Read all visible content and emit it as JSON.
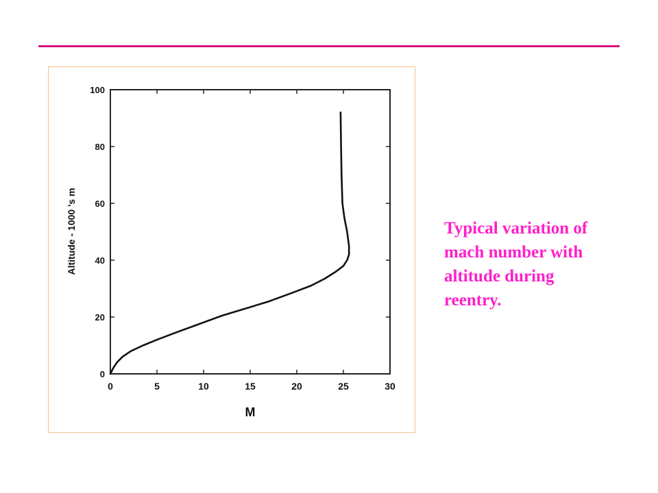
{
  "slide": {
    "accent_color": "#d6137f",
    "frame_color": "#f2c08e",
    "caption_color": "#ff1fc8",
    "caption_lines": [
      "Typical variation of",
      "mach number with",
      "altitude during",
      "reentry."
    ]
  },
  "chart_data": {
    "type": "line",
    "title": "",
    "xlabel": "M",
    "ylabel": "Altitude - 1000 's m",
    "xlim": [
      0,
      30
    ],
    "ylim": [
      0,
      100
    ],
    "x_ticks": [
      0,
      5,
      10,
      15,
      20,
      25,
      30
    ],
    "y_ticks": [
      0,
      20,
      40,
      60,
      80,
      100
    ],
    "grid": false,
    "series": [
      {
        "name": "",
        "color": "#111111",
        "x": [
          0,
          0.3,
          0.7,
          1.3,
          2.2,
          3.5,
          5,
          7,
          9.5,
          12,
          14.5,
          17,
          19.5,
          21.5,
          23,
          24.2,
          25,
          25.4,
          25.6,
          25.6,
          25.4,
          25.1,
          24.9,
          24.8,
          24.75,
          24.7
        ],
        "y": [
          0,
          2,
          4,
          6,
          8,
          10,
          12,
          14.5,
          17.5,
          20.5,
          23,
          25.5,
          28.5,
          31,
          33.5,
          36,
          38,
          40,
          42,
          45,
          50,
          55,
          60,
          70,
          80,
          92
        ]
      }
    ]
  }
}
